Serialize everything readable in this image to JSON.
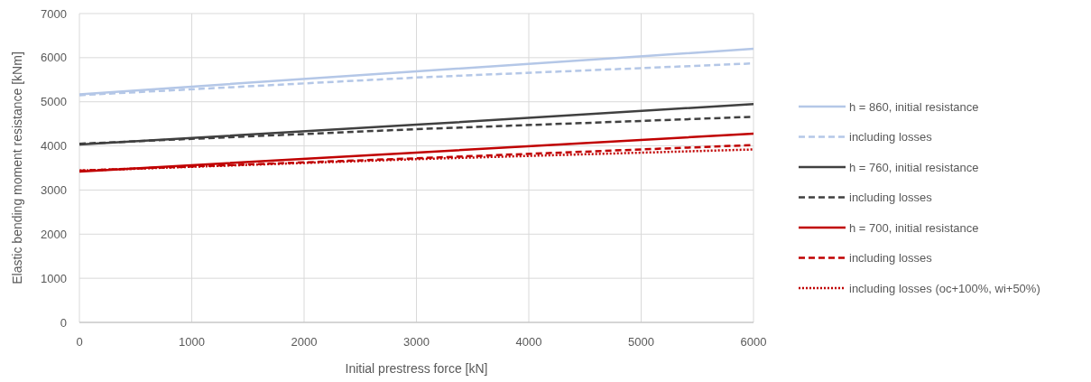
{
  "chart_data": {
    "type": "line",
    "xlabel": "Initial prestress force [kN]",
    "ylabel": "Elastic bending moment resistance [kNm]",
    "x": [
      0,
      3000,
      6000
    ],
    "xlim": [
      0,
      6000
    ],
    "xticks": [
      0,
      1000,
      2000,
      3000,
      4000,
      5000,
      6000
    ],
    "ylim": [
      0,
      7000
    ],
    "yticks": [
      0,
      1000,
      2000,
      3000,
      4000,
      5000,
      6000,
      7000
    ],
    "grid": true,
    "legend": "right",
    "marker": "none",
    "series": [
      {
        "name": "h = 860, initial resistance",
        "color": "#b4c7e7",
        "line_style": "solid",
        "values": [
          5170,
          5690,
          6200
        ]
      },
      {
        "name": "including losses",
        "color": "#b4c7e7",
        "line_style": "dashed",
        "values": [
          5150,
          5550,
          5870
        ]
      },
      {
        "name": "h = 760, initial resistance",
        "color": "#404040",
        "line_style": "solid",
        "values": [
          4030,
          4480,
          4950
        ]
      },
      {
        "name": "including losses",
        "color": "#404040",
        "line_style": "dashed",
        "values": [
          4050,
          4380,
          4660
        ]
      },
      {
        "name": "h = 700, initial resistance",
        "color": "#c00000",
        "line_style": "solid",
        "values": [
          3420,
          3850,
          4280
        ]
      },
      {
        "name": "including losses",
        "color": "#c00000",
        "line_style": "dashed",
        "values": [
          3440,
          3720,
          4020
        ]
      },
      {
        "name": "including losses (oc+100%, wi+50%)",
        "color": "#c00000",
        "line_style": "dotted",
        "values": [
          3440,
          3700,
          3920
        ]
      }
    ]
  }
}
